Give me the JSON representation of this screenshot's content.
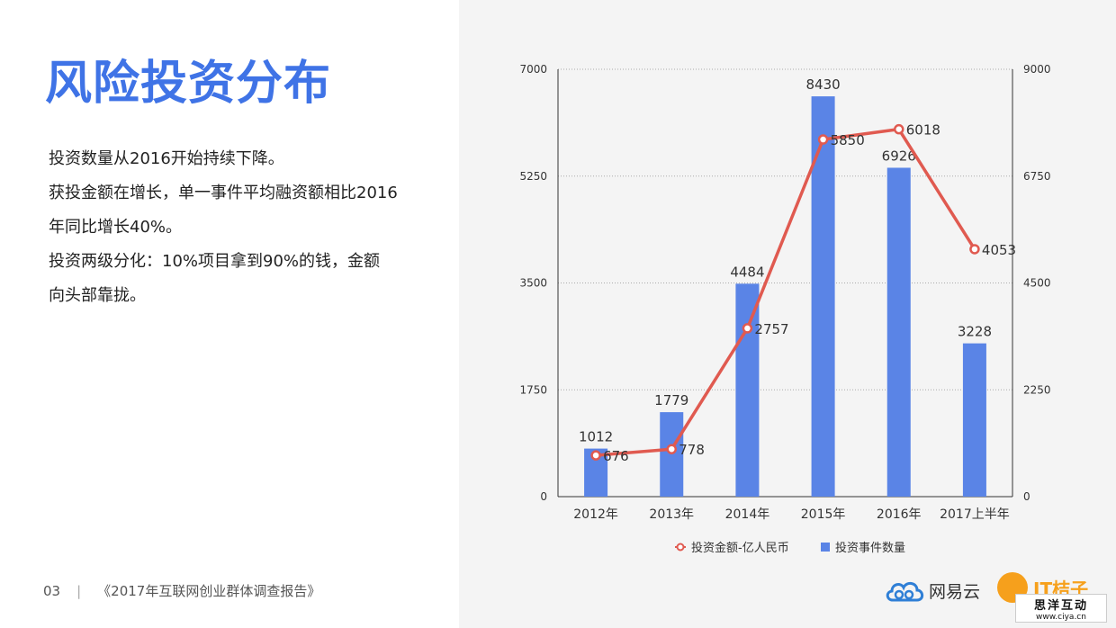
{
  "page": {
    "title": "风险投资分布",
    "paragraphs": [
      "投资数量从2016开始持续下降。",
      "获投金额在增长，单一事件平均融资额相比2016",
      "年同比增长40%。",
      "投资两级分化：10%项目拿到90%的钱，金额",
      "向头部靠拢。"
    ],
    "footer": {
      "page_number": "03",
      "separator": "|",
      "report_title": "《2017年互联网创业群体调查报告》"
    },
    "logos": {
      "netease": "网易云",
      "orange": "IT桔子"
    },
    "watermark": {
      "line1": "思洋互动",
      "line2": "www.ciya.cn"
    }
  },
  "chart_data": {
    "type": "bar",
    "categories": [
      "2012年",
      "2013年",
      "2014年",
      "2015年",
      "2016年",
      "2017上半年"
    ],
    "series": [
      {
        "name": "投资事件数量",
        "type": "bar",
        "axis": "right",
        "color": "#5a84e6",
        "values": [
          1012,
          1779,
          4484,
          8430,
          6926,
          3228
        ]
      },
      {
        "name": "投资金额-亿人民币",
        "type": "line",
        "axis": "left",
        "color": "#e05a50",
        "values": [
          676,
          778,
          2757,
          5850,
          6018,
          4053
        ]
      }
    ],
    "y_left": {
      "min": 0,
      "max": 7000,
      "ticks": [
        "0",
        "1750",
        "3500",
        "5250",
        "7000"
      ]
    },
    "y_right": {
      "min": 0,
      "max": 9000,
      "ticks": [
        "0",
        "2250",
        "4500",
        "6750",
        "9000"
      ]
    },
    "grid": true,
    "legend_position": "bottom"
  }
}
